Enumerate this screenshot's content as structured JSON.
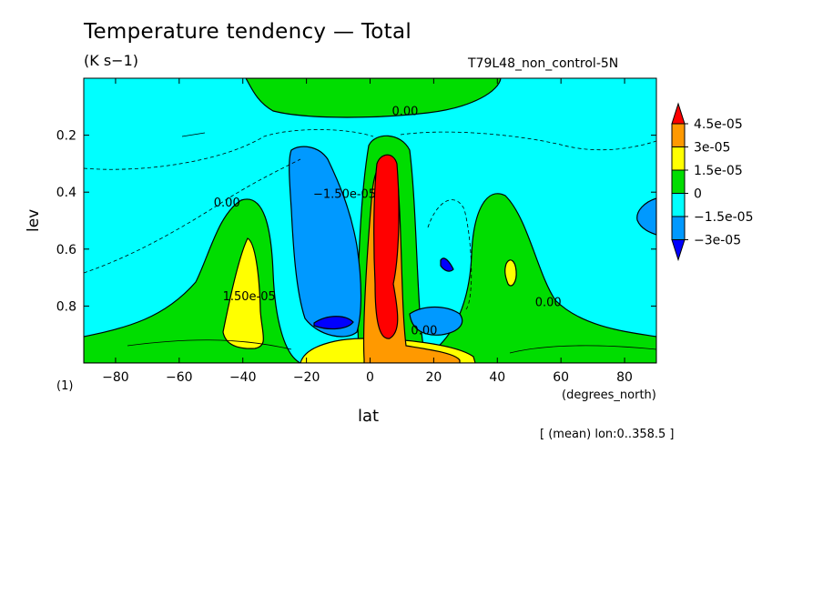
{
  "chart_data": {
    "type": "heatmap",
    "title": "Temperature tendency — Total",
    "units": "(K s−1)",
    "run_name": "T79L48_non_control-5N",
    "xlabel": "lat",
    "ylabel": "lev",
    "x_units": "(degrees_north)",
    "y_multiplier": "(1)",
    "averaging_note": "[ (mean) lon:0..358.5 ]",
    "xlim": [
      -90,
      90
    ],
    "ylim": [
      1.0,
      0.0
    ],
    "x_ticks": [
      -80,
      -60,
      -40,
      -20,
      0,
      20,
      40,
      60,
      80
    ],
    "x_tick_labels": [
      "−80",
      "−60",
      "−40",
      "−20",
      "0",
      "20",
      "40",
      "60",
      "80"
    ],
    "y_ticks": [
      0.2,
      0.4,
      0.6,
      0.8
    ],
    "y_tick_labels": [
      "0.2",
      "0.4",
      "0.6",
      "0.8"
    ],
    "colorbar": {
      "labels": [
        "4.5e-05",
        "3e-05",
        "1.5e-05",
        "0",
        "−1.5e-05",
        "−3e-05"
      ],
      "colors": [
        "#ff0000",
        "#ff9900",
        "#ffff00",
        "#00dd00",
        "#00ffff",
        "#0099ff",
        "#0000ff"
      ]
    },
    "contour_labels": [
      {
        "text": "0.00",
        "lat": 11,
        "lev": 0.13
      },
      {
        "text": "0.00",
        "lat": -45,
        "lev": 0.45
      },
      {
        "text": "1.50e-05",
        "lat": -38,
        "lev": 0.78
      },
      {
        "text": "−1.50e-05",
        "lat": -8,
        "lev": 0.42
      },
      {
        "text": "0.00",
        "lat": 17,
        "lev": 0.9
      },
      {
        "text": "0.00",
        "lat": 56,
        "lev": 0.8
      }
    ],
    "fields": [
      {
        "name": "positive_0_to_1.5e-05",
        "level": 0,
        "color": "#00dd00"
      },
      {
        "name": "negative_below_-1.5e-05",
        "level": -1.5e-05,
        "color": "#0099ff"
      },
      {
        "name": "positive_above_1.5e-05",
        "level": 1.5e-05,
        "color": "#ffff00"
      },
      {
        "name": "positive_above_3e-05",
        "level": 3e-05,
        "color": "#ff9900"
      },
      {
        "name": "positive_above_4.5e-05",
        "level": 4.5e-05,
        "color": "#ff0000"
      },
      {
        "name": "negative_below_-3e-05",
        "level": -3e-05,
        "color": "#0000ff"
      }
    ]
  }
}
